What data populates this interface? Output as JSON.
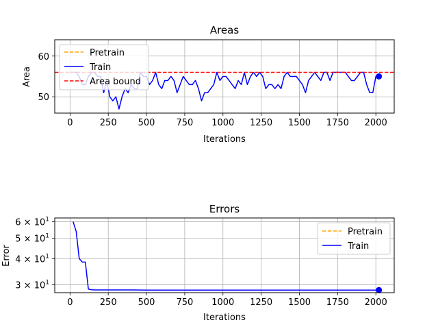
{
  "chart_data": [
    {
      "type": "line",
      "title": "Areas",
      "xlabel": "Iterations",
      "ylabel": "Area",
      "xlim": [
        -100,
        2120
      ],
      "ylim": [
        46,
        64
      ],
      "grid": true,
      "legend_position": "top-left",
      "xticks": [
        0,
        250,
        500,
        750,
        1000,
        1250,
        1500,
        1750,
        2000
      ],
      "yticks": [
        50,
        60
      ],
      "xtick_labels": [
        "0",
        "250",
        "500",
        "750",
        "1000",
        "1250",
        "1500",
        "1750",
        "2000"
      ],
      "ytick_labels": [
        "50",
        "60"
      ],
      "colors": {
        "pretrain": "#ffa500",
        "train": "#0000ff",
        "bound": "#ff0000"
      },
      "series": [
        {
          "name": "Pretrain",
          "style": "dashed",
          "x": [],
          "y": []
        },
        {
          "name": "Train",
          "style": "solid",
          "x": [
            0,
            20,
            40,
            60,
            80,
            100,
            120,
            140,
            160,
            180,
            200,
            220,
            240,
            260,
            280,
            300,
            320,
            340,
            360,
            380,
            400,
            420,
            440,
            460,
            480,
            500,
            520,
            540,
            560,
            580,
            600,
            620,
            640,
            660,
            680,
            700,
            720,
            740,
            760,
            780,
            800,
            820,
            840,
            860,
            880,
            900,
            920,
            940,
            960,
            980,
            1000,
            1020,
            1040,
            1060,
            1080,
            1100,
            1120,
            1140,
            1160,
            1180,
            1200,
            1220,
            1240,
            1260,
            1280,
            1300,
            1320,
            1340,
            1360,
            1380,
            1400,
            1420,
            1440,
            1460,
            1480,
            1500,
            1520,
            1540,
            1560,
            1580,
            1600,
            1620,
            1640,
            1660,
            1680,
            1700,
            1720,
            1740,
            1760,
            1780,
            1800,
            1820,
            1840,
            1860,
            1880,
            1900,
            1920,
            1940,
            1960,
            1980,
            2000,
            2020
          ],
          "y": [
            56,
            56,
            56,
            55,
            53,
            53,
            55,
            56,
            56,
            55,
            55,
            51,
            54,
            50,
            49,
            50,
            47,
            50,
            52,
            51,
            53,
            52,
            52,
            56,
            55,
            55,
            53,
            54,
            56,
            53,
            52,
            54,
            54,
            55,
            54,
            51,
            53,
            55,
            54,
            53,
            53,
            54,
            52,
            49,
            51,
            51,
            52,
            53,
            56,
            54,
            55,
            55,
            54,
            53,
            52,
            54,
            53,
            56,
            53,
            55,
            56,
            55,
            56,
            55,
            52,
            53,
            53,
            52,
            53,
            52,
            55,
            56,
            55,
            55,
            55,
            54,
            53,
            51,
            54,
            55,
            56,
            55,
            54,
            56,
            56,
            54,
            56,
            56,
            56,
            56,
            56,
            55,
            54,
            54,
            55,
            56,
            56,
            53,
            51,
            51,
            55,
            55
          ]
        },
        {
          "name": "Area bound",
          "style": "dashed",
          "y_constant": 56
        }
      ],
      "end_marker": {
        "x": 2020,
        "y": 55
      }
    },
    {
      "type": "line",
      "title": "Errors",
      "xlabel": "Iterations",
      "ylabel": "Error",
      "xlim": [
        -100,
        2120
      ],
      "ylim": [
        27.5,
        62.5
      ],
      "yscale": "log",
      "grid": true,
      "legend_position": "top-right",
      "xticks": [
        0,
        250,
        500,
        750,
        1000,
        1250,
        1500,
        1750,
        2000
      ],
      "xtick_labels": [
        "0",
        "250",
        "500",
        "750",
        "1000",
        "1250",
        "1500",
        "1750",
        "2000"
      ],
      "yticks": [
        30,
        40,
        50,
        60
      ],
      "ytick_labels": [
        "3 × 10",
        "4 × 10",
        "5 × 10",
        "6 × 10"
      ],
      "ytick_exponent": "1",
      "colors": {
        "pretrain": "#ffa500",
        "train": "#0000ff"
      },
      "series": [
        {
          "name": "Pretrain",
          "style": "dashed",
          "x": [],
          "y": []
        },
        {
          "name": "Train",
          "style": "solid",
          "x": [
            20,
            40,
            60,
            80,
            100,
            120,
            140,
            160,
            200,
            400,
            500,
            1000,
            1500,
            2020
          ],
          "y": [
            60,
            54,
            40,
            38.5,
            38.5,
            28.6,
            28.4,
            28.35,
            28.35,
            28.35,
            28.3,
            28.3,
            28.3,
            28.3
          ]
        }
      ],
      "end_marker": {
        "x": 2020,
        "y": 28.3
      }
    }
  ]
}
